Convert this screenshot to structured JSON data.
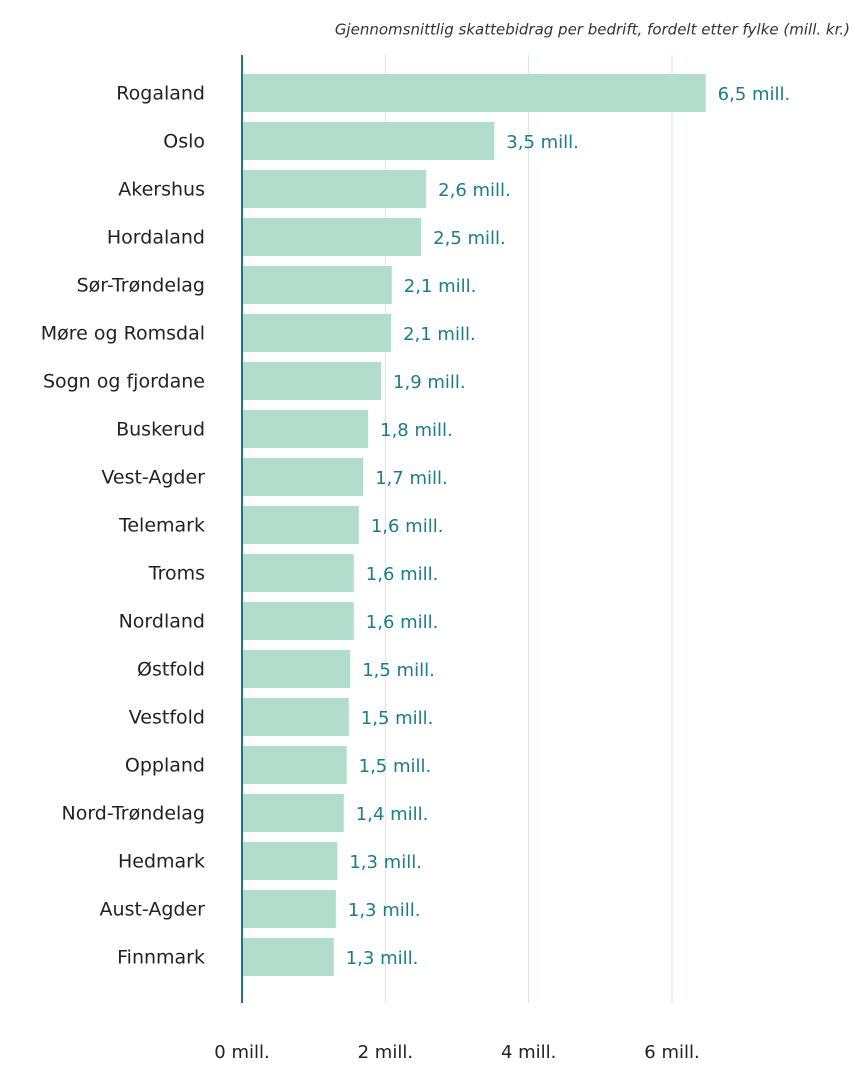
{
  "chart_data": {
    "type": "bar",
    "orientation": "horizontal",
    "title": "Gjennomsnittlig skattebidrag per bedrift, fordelt etter fylke (mill. kr.)",
    "categories": [
      "Rogaland",
      "Oslo",
      "Akershus",
      "Hordaland",
      "Sør-Trøndelag",
      "Møre og Romsdal",
      "Sogn og fjordane",
      "Buskerud",
      "Vest-Agder",
      "Telemark",
      "Troms",
      "Nordland",
      "Østfold",
      "Vestfold",
      "Oppland",
      "Nord-Trøndelag",
      "Hedmark",
      "Aust-Agder",
      "Finnmark"
    ],
    "values": [
      6.47,
      3.52,
      2.57,
      2.5,
      2.09,
      2.08,
      1.94,
      1.76,
      1.69,
      1.63,
      1.56,
      1.56,
      1.51,
      1.49,
      1.46,
      1.42,
      1.33,
      1.31,
      1.28
    ],
    "value_labels": [
      "6,5 mill.",
      "3,5 mill.",
      "2,6 mill.",
      "2,5 mill.",
      "2,1 mill.",
      "2,1 mill.",
      "1,9 mill.",
      "1,8 mill.",
      "1,7 mill.",
      "1,6 mill.",
      "1,6 mill.",
      "1,6 mill.",
      "1,5 mill.",
      "1,5 mill.",
      "1,5 mill.",
      "1,4 mill.",
      "1,3 mill.",
      "1,3 mill.",
      "1,3 mill."
    ],
    "color": "#b2dccb",
    "xlim": [
      0,
      6
    ],
    "xticks": [
      {
        "value": 0,
        "label": "0 mill."
      },
      {
        "value": 2,
        "label": "2 mill."
      },
      {
        "value": 4,
        "label": "4 mill."
      },
      {
        "value": 6,
        "label": "6 mill."
      }
    ],
    "grid": true
  }
}
